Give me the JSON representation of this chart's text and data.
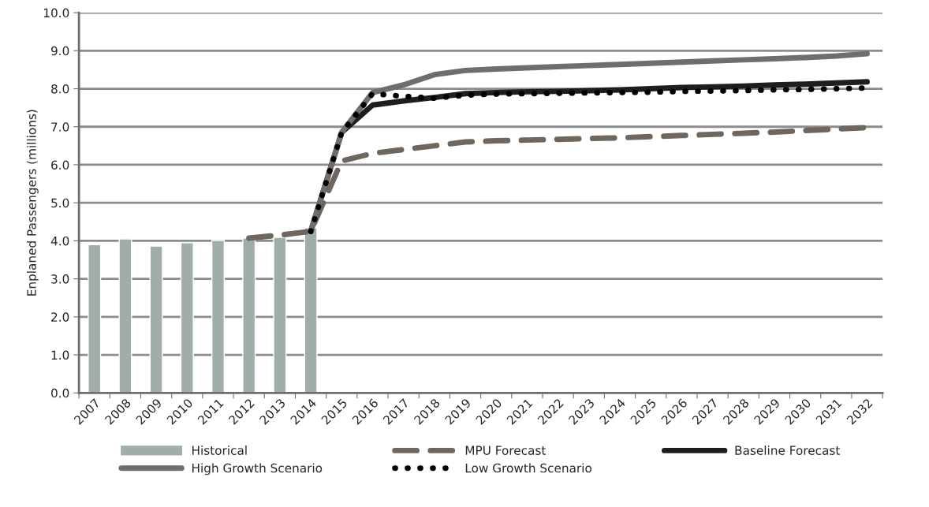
{
  "chart_data": {
    "type": "bar",
    "ylabel": "Enplaned Passengers (millions)",
    "categories": [
      "2007",
      "2008",
      "2009",
      "2010",
      "2011",
      "2012",
      "2013",
      "2014",
      "2015",
      "2016",
      "2017",
      "2018",
      "2019",
      "2020",
      "2021",
      "2022",
      "2023",
      "2024",
      "2025",
      "2026",
      "2027",
      "2028",
      "2029",
      "2030",
      "2031",
      "2032"
    ],
    "series": [
      {
        "name": "Historical",
        "color": "#a0adab",
        "values": [
          3.9,
          4.05,
          3.86,
          3.95,
          4.01,
          4.07,
          4.09,
          4.34,
          null,
          null,
          null,
          null,
          null,
          null,
          null,
          null,
          null,
          null,
          null,
          null,
          null,
          null,
          null,
          null,
          null,
          null
        ]
      },
      {
        "name": "MPU Forecast",
        "type": "line",
        "line_style": "dashed",
        "color": "#6f675e",
        "values": [
          null,
          null,
          null,
          null,
          null,
          4.07,
          4.15,
          4.25,
          6.1,
          6.3,
          6.4,
          6.5,
          6.6,
          6.63,
          6.65,
          6.67,
          6.69,
          6.71,
          6.74,
          6.77,
          6.8,
          6.83,
          6.86,
          6.9,
          6.94,
          6.98
        ]
      },
      {
        "name": "Baseline Forecast",
        "type": "line",
        "line_style": "solid",
        "color": "#1e1e1e",
        "values": [
          null,
          null,
          null,
          null,
          null,
          null,
          null,
          4.25,
          6.85,
          7.57,
          7.68,
          7.77,
          7.87,
          7.9,
          7.92,
          7.93,
          7.95,
          7.97,
          8.0,
          8.03,
          8.05,
          8.07,
          8.1,
          8.12,
          8.15,
          8.18
        ]
      },
      {
        "name": "High Growth Scenario",
        "type": "line",
        "line_style": "solid",
        "color": "#6e6e6e",
        "values": [
          null,
          null,
          null,
          null,
          null,
          null,
          null,
          4.25,
          6.85,
          7.9,
          8.1,
          8.37,
          8.48,
          8.52,
          8.55,
          8.58,
          8.61,
          8.64,
          8.67,
          8.7,
          8.73,
          8.76,
          8.79,
          8.82,
          8.86,
          8.92
        ]
      },
      {
        "name": "Low Growth Scenario",
        "type": "line",
        "line_style": "dotted",
        "color": "#000000",
        "values": [
          null,
          null,
          null,
          null,
          null,
          null,
          null,
          4.25,
          6.85,
          7.87,
          7.8,
          7.75,
          7.83,
          7.86,
          7.87,
          7.88,
          7.89,
          7.9,
          7.91,
          7.93,
          7.94,
          7.95,
          7.97,
          7.98,
          8.0,
          8.02
        ]
      }
    ],
    "ylim": [
      0,
      10
    ],
    "yticks": [
      {
        "value": 0,
        "label": "0.0"
      },
      {
        "value": 1,
        "label": "1.0"
      },
      {
        "value": 2,
        "label": "2.0"
      },
      {
        "value": 3,
        "label": "3.0"
      },
      {
        "value": 4,
        "label": "4.0"
      },
      {
        "value": 5,
        "label": "5.0"
      },
      {
        "value": 6,
        "label": "6.0"
      },
      {
        "value": 7,
        "label": "7.0"
      },
      {
        "value": 8,
        "label": "8.0"
      },
      {
        "value": 9,
        "label": "9.0"
      },
      {
        "value": 10,
        "label": "10.0"
      }
    ],
    "grid": "y",
    "legend": "bottom"
  }
}
